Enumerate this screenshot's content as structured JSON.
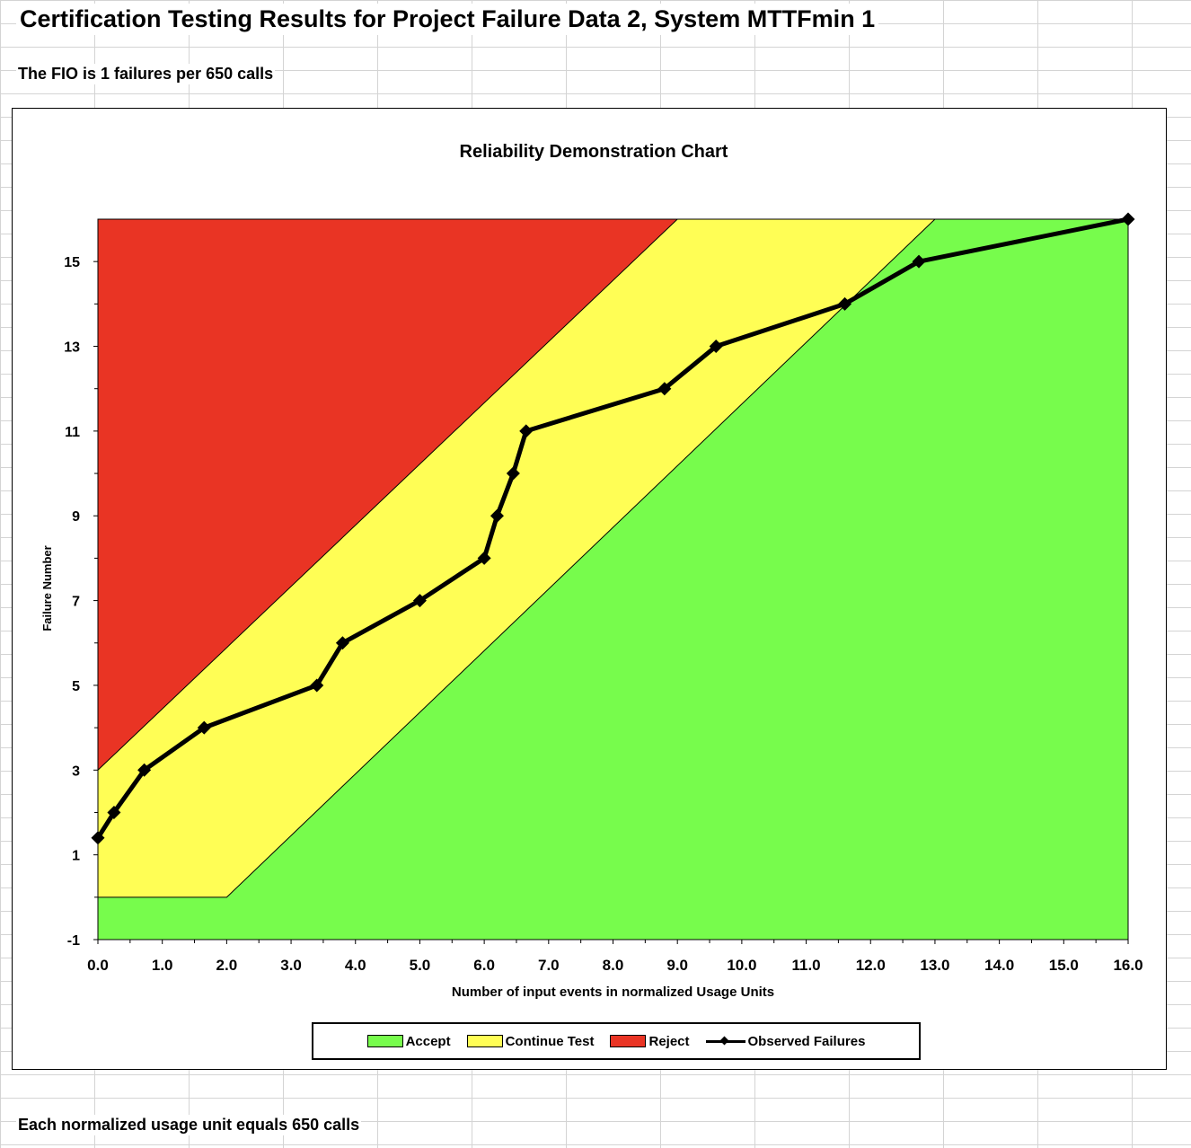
{
  "sheet": {
    "title": "Certification Testing Results for Project Failure Data 2, System MTTFmin 1",
    "fio_text": "The FIO is 1 failures per 650 calls",
    "footnote": "Each normalized usage unit equals 650 calls"
  },
  "chart_data": {
    "type": "line",
    "title": "Reliability Demonstration Chart",
    "xlabel": "Number of input events in normalized Usage Units",
    "ylabel": "Failure Number",
    "xlim": [
      0,
      16
    ],
    "ylim": [
      -1,
      16
    ],
    "x_ticks": [
      "0.0",
      "1.0",
      "2.0",
      "3.0",
      "4.0",
      "5.0",
      "6.0",
      "7.0",
      "8.0",
      "9.0",
      "10.0",
      "11.0",
      "12.0",
      "13.0",
      "14.0",
      "15.0",
      "16.0"
    ],
    "y_ticks": [
      "-1",
      "1",
      "3",
      "5",
      "7",
      "9",
      "11",
      "13",
      "15"
    ],
    "y_tick_values": [
      -1,
      1,
      3,
      5,
      7,
      9,
      11,
      13,
      15
    ],
    "grid": false,
    "legend_position": "bottom",
    "regions": [
      {
        "name": "Accept",
        "color": "#77fc4c"
      },
      {
        "name": "Continue Test",
        "color": "#fffe55"
      },
      {
        "name": "Reject",
        "color": "#e93424"
      }
    ],
    "boundaries": {
      "reject_line": [
        [
          0,
          3
        ],
        [
          9,
          16
        ]
      ],
      "accept_line": [
        [
          0,
          0
        ],
        [
          2,
          0
        ],
        [
          13,
          16
        ]
      ]
    },
    "series": [
      {
        "name": "Observed Failures",
        "color": "#000000",
        "x": [
          0.0,
          0.25,
          0.72,
          1.65,
          3.4,
          3.8,
          5.0,
          6.0,
          6.2,
          6.45,
          6.65,
          8.8,
          9.6,
          11.6,
          12.75,
          16.0
        ],
        "y": [
          1.4,
          2,
          3,
          4,
          5,
          6,
          7,
          8,
          9,
          10,
          11,
          12,
          13,
          14,
          15,
          16
        ]
      }
    ]
  }
}
